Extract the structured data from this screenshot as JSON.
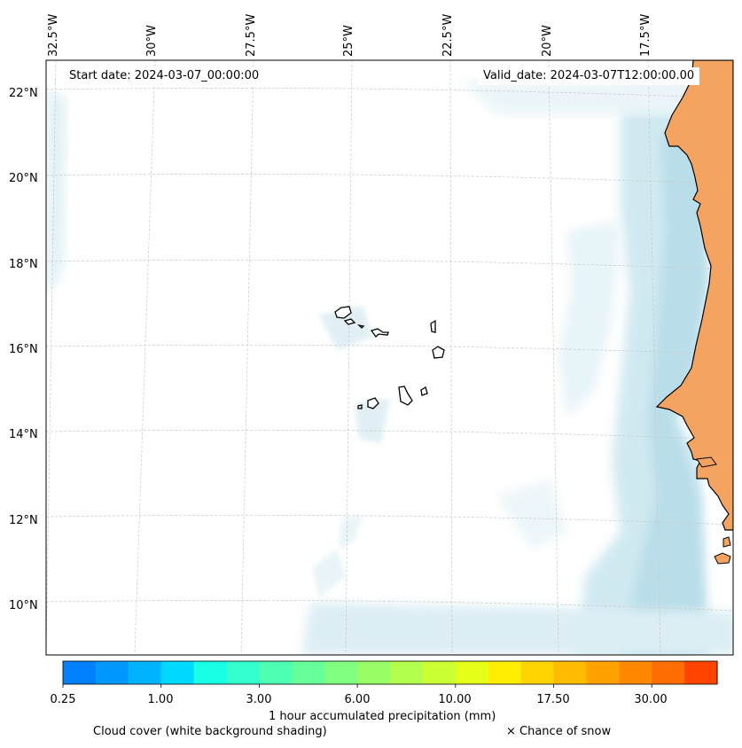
{
  "map": {
    "start_date": "Start date: 2024-03-07_00:00:00",
    "valid_date": "Valid_date: 2024-03-07T12:00:00.00",
    "longitude_labels": [
      "32.5°W",
      "30°W",
      "27.5°W",
      "25°W",
      "22.5°W",
      "20°W",
      "17.5°W"
    ],
    "latitude_labels": [
      "22°N",
      "20°N",
      "18°N",
      "16°N",
      "14°N",
      "12°N",
      "10°N"
    ],
    "region": "Cape Verde and West African coast",
    "land_color": "#f4a460",
    "ocean_cloud_color": "#add8e6"
  },
  "colorbar": {
    "ticks": [
      "0.25",
      "1.00",
      "3.00",
      "6.00",
      "10.00",
      "17.50",
      "30.00"
    ],
    "colors": [
      "#0080ff",
      "#0099ff",
      "#00b3ff",
      "#00d9ff",
      "#19ffe6",
      "#33ffcc",
      "#4dffb3",
      "#66ff99",
      "#80ff80",
      "#99ff66",
      "#b3ff4d",
      "#ccff33",
      "#e6ff19",
      "#ffee00",
      "#ffd500",
      "#ffbb00",
      "#ffa200",
      "#ff8800",
      "#ff6e00",
      "#ff4400"
    ],
    "label": "1 hour accumulated precipitation (mm)"
  },
  "captions": {
    "cloud": "Cloud cover (white background shading)",
    "snow": "× Chance of snow"
  }
}
